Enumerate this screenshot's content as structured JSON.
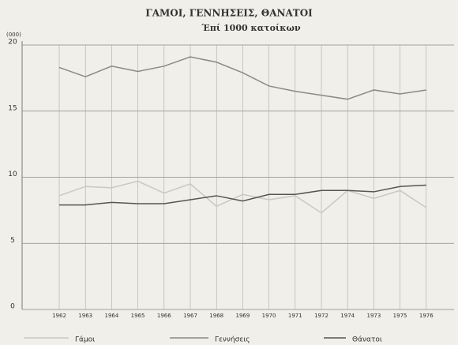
{
  "chart_data": {
    "type": "line",
    "title": "ΓΑΜΟΙ, ΓΕΝΝΗΣΕΙΣ, ΘΑΝΑΤΟΙ",
    "subtitle": "Έπί 1000 κατοίκων",
    "y_unit": "(000)",
    "categories": [
      "1962",
      "1963",
      "1964",
      "1965",
      "1966",
      "1967",
      "1968",
      "1969",
      "1970",
      "1971",
      "1972",
      "1974",
      "1973",
      "1975",
      "1976"
    ],
    "series": [
      {
        "name": "Γάμοι",
        "color": "#c8c8c4",
        "values": [
          8.6,
          9.3,
          9.2,
          9.7,
          8.8,
          9.5,
          7.8,
          8.7,
          8.3,
          8.6,
          7.3,
          9.0,
          8.4,
          9.0,
          7.7
        ]
      },
      {
        "name": "Γεννήσεις",
        "color": "#8a8a86",
        "values": [
          18.3,
          17.6,
          18.4,
          18.0,
          18.4,
          19.1,
          18.7,
          17.9,
          16.9,
          16.5,
          16.2,
          15.9,
          16.6,
          16.3,
          16.6
        ]
      },
      {
        "name": "Θάνατοι",
        "color": "#555552",
        "values": [
          7.9,
          7.9,
          8.1,
          8.0,
          8.0,
          8.3,
          8.6,
          8.2,
          8.7,
          8.7,
          9.0,
          9.0,
          8.9,
          9.3,
          9.4
        ]
      }
    ],
    "ylim": [
      0,
      20
    ],
    "yticks": [
      0,
      5,
      10,
      15,
      20
    ],
    "grid": true
  }
}
